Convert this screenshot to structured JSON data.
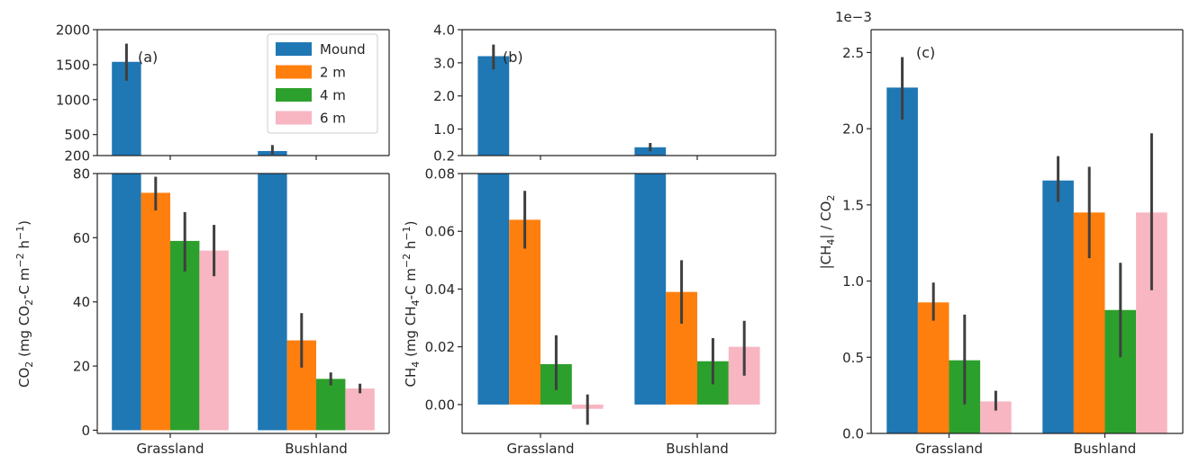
{
  "legend": {
    "entries": [
      "Mound",
      "2 m",
      "4 m",
      "6 m"
    ],
    "colors": [
      "#1f77b4",
      "#ff7f0e",
      "#2ca02c",
      "#f7b6c2"
    ],
    "placement": "top-right of panel (a)"
  },
  "chart_data": [
    {
      "type": "bar",
      "panel_label": "(a)",
      "ylabel_main": "CO",
      "ylabel_sub": "2",
      "ylabel_rest": " (mg CO",
      "ylabel_sub2": "2",
      "ylabel_rest2": "-C m",
      "ylabel_sup": "−2",
      "ylabel_rest3": " h",
      "ylabel_sup2": "−1",
      "ylabel_end": ")",
      "broken_axis": true,
      "categories": [
        "Grassland",
        "Bushland"
      ],
      "series": [
        {
          "name": "Mound",
          "values": [
            1540,
            265
          ],
          "ci": [
            [
              1270,
              1800
            ],
            [
              215,
              350
            ]
          ]
        },
        {
          "name": "2 m",
          "values": [
            74,
            28
          ],
          "ci": [
            [
              68.5,
              79
            ],
            [
              19.5,
              36.5
            ]
          ]
        },
        {
          "name": "4 m",
          "values": [
            59,
            16
          ],
          "ci": [
            [
              49.5,
              68
            ],
            [
              14,
              18
            ]
          ]
        },
        {
          "name": "6 m",
          "values": [
            56,
            13
          ],
          "ci": [
            [
              48,
              64
            ],
            [
              11.5,
              14.5
            ]
          ]
        }
      ],
      "upper_ylim": [
        200,
        2000
      ],
      "upper_ticks": [
        "2000",
        "1500",
        "1000",
        "500",
        "200"
      ],
      "upper_tick_values": [
        2000,
        1500,
        1000,
        500,
        200
      ],
      "lower_ylim": [
        -1,
        80
      ],
      "lower_ticks": [
        "80",
        "60",
        "40",
        "20",
        "0"
      ],
      "lower_tick_values": [
        80,
        60,
        40,
        20,
        0
      ]
    },
    {
      "type": "bar",
      "panel_label": "(b)",
      "ylabel_main": "CH",
      "ylabel_sub": "4",
      "ylabel_rest": " (mg CH",
      "ylabel_sub2": "4",
      "ylabel_rest2": "-C m",
      "ylabel_sup": "−2",
      "ylabel_rest3": " h",
      "ylabel_sup2": "−1",
      "ylabel_end": ")",
      "broken_axis": true,
      "categories": [
        "Grassland",
        "Bushland"
      ],
      "series": [
        {
          "name": "Mound",
          "values": [
            3.2,
            0.45
          ],
          "ci": [
            [
              2.8,
              3.55
            ],
            [
              0.33,
              0.58
            ]
          ]
        },
        {
          "name": "2 m",
          "values": [
            0.064,
            0.039
          ],
          "ci": [
            [
              0.054,
              0.074
            ],
            [
              0.028,
              0.05
            ]
          ]
        },
        {
          "name": "4 m",
          "values": [
            0.014,
            0.015
          ],
          "ci": [
            [
              0.005,
              0.024
            ],
            [
              0.007,
              0.023
            ]
          ]
        },
        {
          "name": "6 m",
          "values": [
            -0.0015,
            0.02
          ],
          "ci": [
            [
              -0.007,
              0.0035
            ],
            [
              0.01,
              0.029
            ]
          ]
        }
      ],
      "upper_ylim": [
        0.2,
        4.0
      ],
      "upper_ticks": [
        "4.0",
        "3.0",
        "2.0",
        "1.0",
        "0.2"
      ],
      "upper_tick_values": [
        4.0,
        3.0,
        2.0,
        1.0,
        0.2
      ],
      "lower_ylim": [
        -0.01,
        0.08
      ],
      "lower_ticks": [
        "0.08",
        "0.06",
        "0.04",
        "0.02",
        "0.00"
      ],
      "lower_tick_values": [
        0.08,
        0.06,
        0.04,
        0.02,
        0.0
      ]
    },
    {
      "type": "bar",
      "panel_label": "(c)",
      "ylabel_main": "|CH",
      "ylabel_sub": "4",
      "ylabel_rest": "| / CO",
      "ylabel_sub2": "2",
      "offset_text": "1e−3",
      "broken_axis": false,
      "categories": [
        "Grassland",
        "Bushland"
      ],
      "series": [
        {
          "name": "Mound",
          "values": [
            2.27,
            1.66
          ],
          "ci": [
            [
              2.06,
              2.47
            ],
            [
              1.52,
              1.82
            ]
          ]
        },
        {
          "name": "2 m",
          "values": [
            0.86,
            1.45
          ],
          "ci": [
            [
              0.74,
              0.99
            ],
            [
              1.15,
              1.75
            ]
          ]
        },
        {
          "name": "4 m",
          "values": [
            0.48,
            0.81
          ],
          "ci": [
            [
              0.19,
              0.78
            ],
            [
              0.5,
              1.12
            ]
          ]
        },
        {
          "name": "6 m",
          "values": [
            0.21,
            1.45
          ],
          "ci": [
            [
              0.15,
              0.28
            ],
            [
              0.94,
              1.97
            ]
          ]
        }
      ],
      "ylim": [
        0,
        2.65
      ],
      "ticks": [
        "0.0",
        "0.5",
        "1.0",
        "1.5",
        "2.0",
        "2.5"
      ],
      "tick_values": [
        0.0,
        0.5,
        1.0,
        1.5,
        2.0,
        2.5
      ]
    }
  ]
}
